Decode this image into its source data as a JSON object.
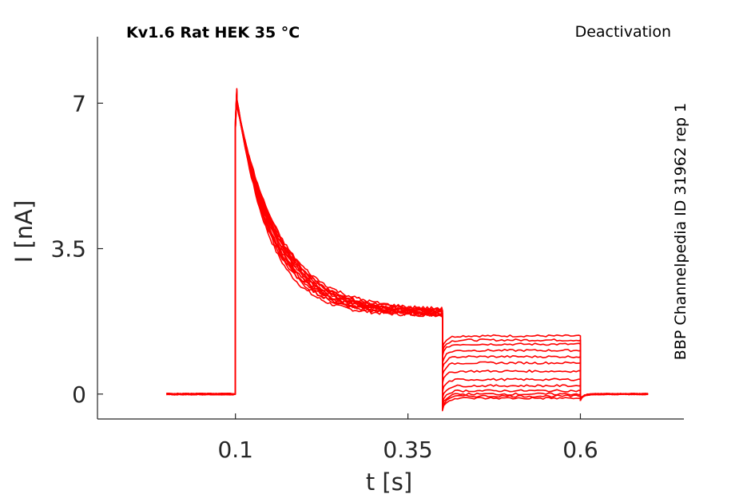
{
  "header": {
    "title": "Kv1.6  Rat  HEK  35 °C",
    "protocol": "Deactivation",
    "source": "BBP Channelpedia ID 31962 rep 1"
  },
  "chart_data": {
    "type": "line",
    "title": "Kv1.6  Rat  HEK  35 °C",
    "xlabel": "t [s]",
    "ylabel": "I [nA]",
    "xlim": [
      -0.1,
      0.75
    ],
    "ylim": [
      -0.6,
      8.6
    ],
    "xticks": [
      0.1,
      0.35,
      0.6
    ],
    "xtick_labels": [
      "0.1",
      "0.35",
      "0.6"
    ],
    "yticks": [
      0,
      3.5,
      7
    ],
    "ytick_labels": [
      "0",
      "3.5",
      "7"
    ],
    "grid": false,
    "legend": "none",
    "color": "#ff0000",
    "segments": {
      "baseline_end": 0.1,
      "step1_end": 0.4,
      "step2_end": 0.6,
      "record_end": 0.7,
      "record_start": 0.0
    },
    "series_summary": {
      "peak_current": 7.35,
      "decay_tau": 0.055,
      "plateau_current": 1.95,
      "tail_levels": [
        1.4,
        1.3,
        1.2,
        1.05,
        0.9,
        0.75,
        0.55,
        0.35,
        0.2,
        0.08,
        0.0,
        -0.05,
        -0.1
      ]
    }
  }
}
